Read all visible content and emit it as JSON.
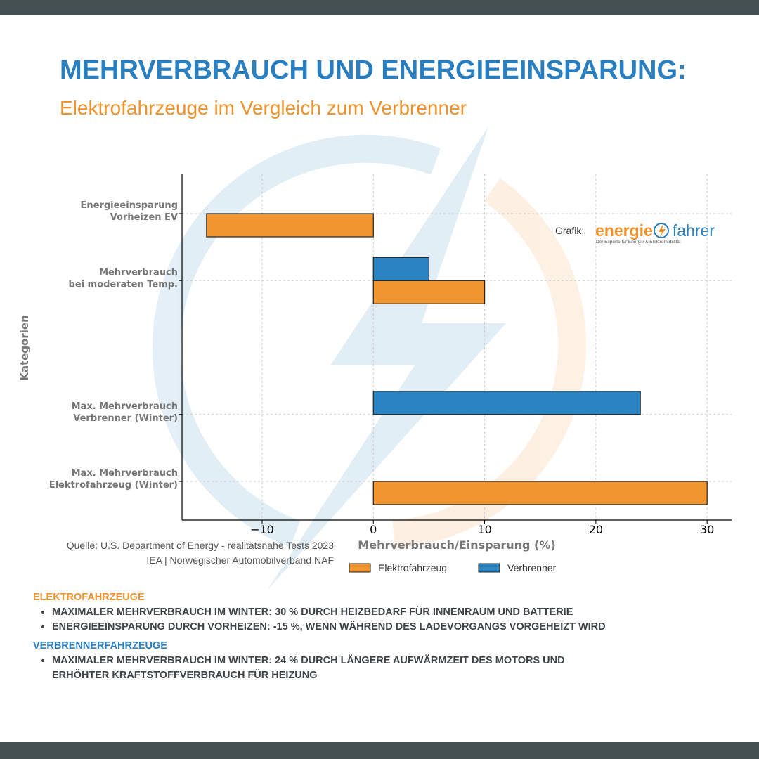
{
  "header": {
    "title": "MEHRVERBRAUCH UND ENERGIEEINSPARUNG:",
    "subtitle": "Elektrofahrzeuge im Vergleich zum Verbrenner"
  },
  "credit": {
    "label": "Grafik:",
    "logo_part_1": "energie",
    "logo_part_2": "fahrer",
    "tagline": "Der Experte für Energie & Elektromobilität"
  },
  "chart_data": {
    "type": "hbar",
    "categories": [
      [
        "Energieeinsparung",
        "Vorheizen EV"
      ],
      [
        "Mehrverbrauch",
        "bei moderaten Temp."
      ],
      null,
      [
        "Max. Mehrverbrauch",
        "Verbrenner (Winter)"
      ],
      [
        "Max. Mehrverbrauch",
        "Elektrofahrzeug (Winter)"
      ]
    ],
    "series": [
      {
        "name": "Elektrofahrzeug",
        "color": "#f0952f",
        "values": [
          -15,
          10,
          null,
          0,
          30
        ]
      },
      {
        "name": "Verbrenner",
        "color": "#2b84c2",
        "values": [
          0,
          5,
          null,
          24,
          0
        ]
      }
    ],
    "x_label": "Mehrverbrauch/Einsparung (%)",
    "y_label": "Kategorien",
    "xlim": [
      -17.2,
      32.2
    ],
    "xticks": [
      {
        "value": -10,
        "label": "−10"
      },
      0,
      10,
      20,
      30
    ],
    "grid": true
  },
  "source": [
    "Quelle: U.S. Department of Energy - realitätsnahe Tests 2023",
    "IEA | Norwegischer Automobilverband NAF"
  ],
  "notes": [
    {
      "heading": "ELEKTROFAHRZEUGE",
      "bullets": [
        "MAXIMALER MEHRVERBRAUCH IM WINTER: 30 % DURCH HEIZBEDARF FÜR INNENRAUM UND BATTERIE",
        "ENERGIEEINSPARUNG DURCH VORHEIZEN: -15 %, WENN WÄHREND DES LADEVORGANGS VORGEHEIZT WIRD"
      ]
    },
    {
      "heading": "VERBRENNERFAHRZEUGE",
      "bullets": [
        "MAXIMALER MEHRVERBRAUCH IM WINTER: 24 % DURCH LÄNGERE AUFWÄRMZEIT DES MOTORS UND ERHÖHTER KRAFTSTOFFVERBRAUCH FÜR HEIZUNG"
      ]
    }
  ]
}
